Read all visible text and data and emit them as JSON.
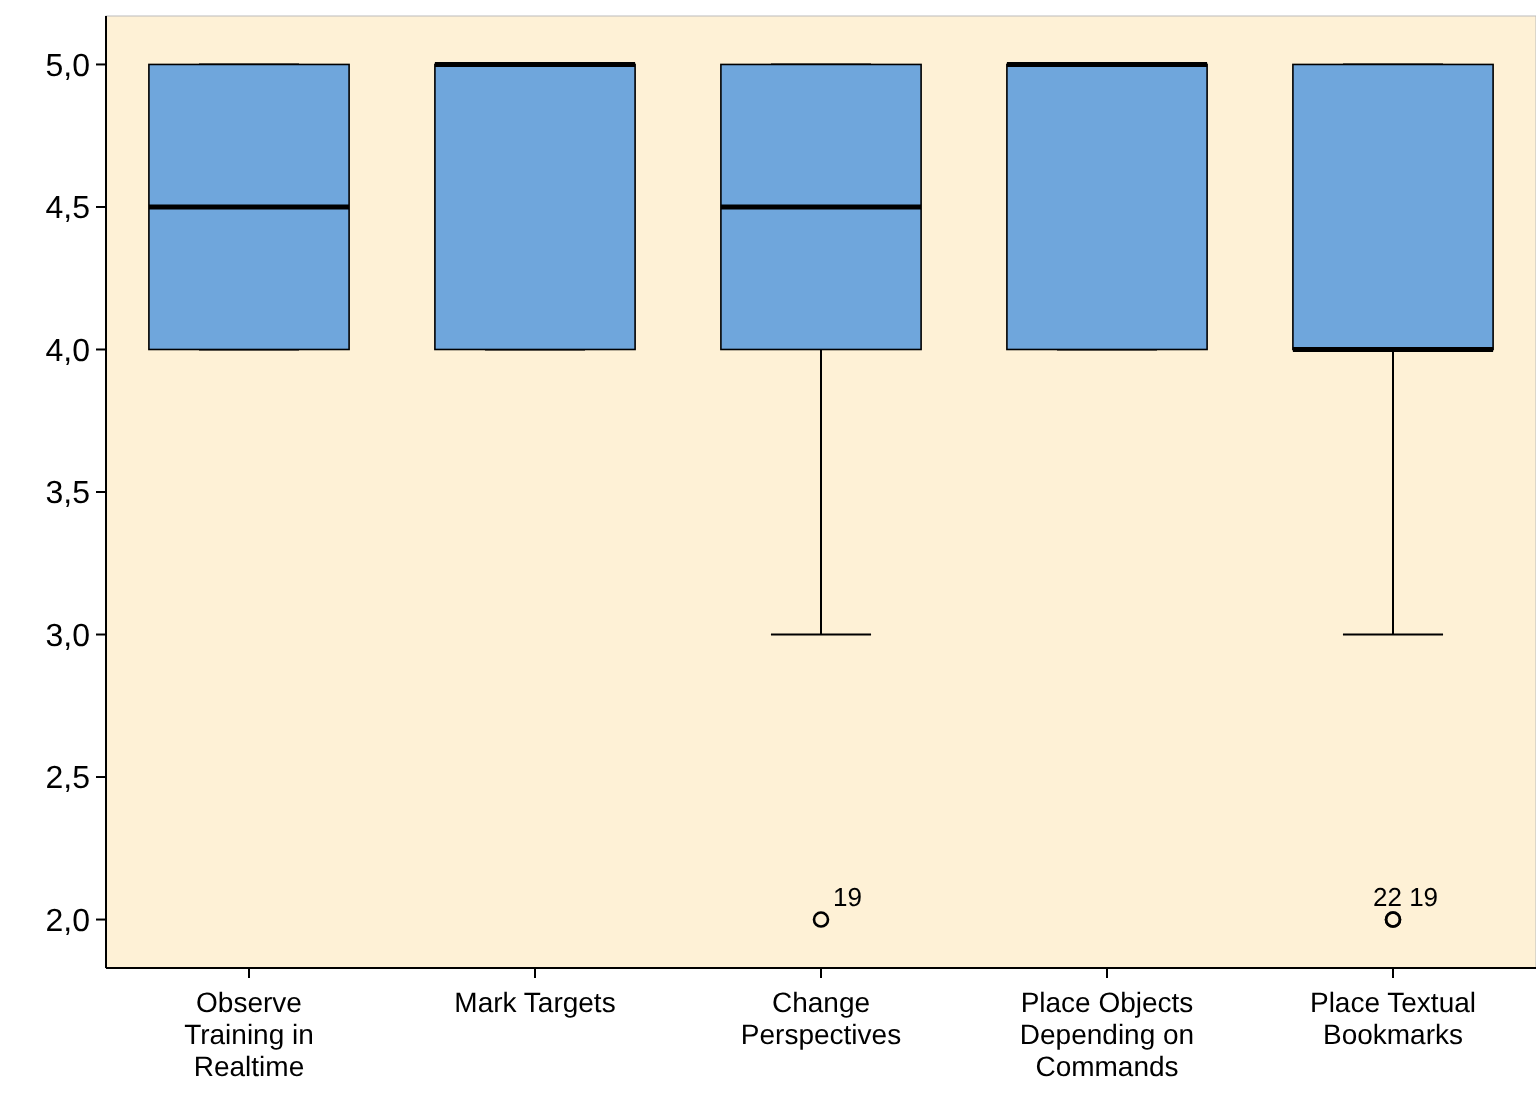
{
  "chart_data": {
    "type": "box",
    "categories": [
      "Observe Training in Realtime",
      "Mark Targets",
      "Change Perspectives",
      "Place Objects Depending on Commands",
      "Place Textual Bookmarks"
    ],
    "color": "#6fa6dc",
    "boxes": [
      {
        "low": 4,
        "q1": 4,
        "median": 4.5,
        "q3": 5,
        "high": 5
      },
      {
        "low": 4,
        "q1": 4,
        "median": 5,
        "q3": 5,
        "high": 5
      },
      {
        "low": 3,
        "q1": 4,
        "median": 4.5,
        "q3": 5,
        "high": 5,
        "outliers": [
          2
        ]
      },
      {
        "low": 4,
        "q1": 4,
        "median": 5,
        "q3": 5,
        "high": 5
      },
      {
        "low": 3,
        "q1": 4,
        "median": 4,
        "q3": 5,
        "high": 5,
        "outliers": [
          2,
          2
        ]
      }
    ],
    "ylim": [
      1.83,
      5.17
    ],
    "yticks": [
      {
        "value": 2,
        "label": "2,0"
      },
      {
        "value": 2.5,
        "label": "2,5"
      },
      {
        "value": 3,
        "label": "3,0"
      },
      {
        "value": 3.5,
        "label": "3,5"
      },
      {
        "value": 4,
        "label": "4,0"
      },
      {
        "value": 4.5,
        "label": "4,5"
      },
      {
        "value": 5,
        "label": "5,0"
      }
    ],
    "annotations": [
      "19",
      "22 19"
    ],
    "grid": false
  }
}
